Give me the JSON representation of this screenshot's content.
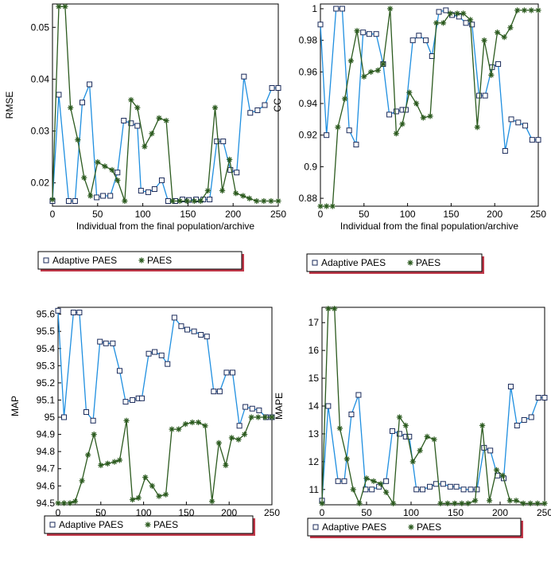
{
  "colors": {
    "adaptive": "#1f8fe0",
    "paes": "#2b5a1e",
    "legend_shadow": "#c0394a"
  },
  "chart_data": [
    {
      "type": "line",
      "ylabel": "RMSE",
      "xlabel": "Individual from the final population/archive",
      "xlim": [
        0,
        250
      ],
      "ylim": [
        0.0155,
        0.0545
      ],
      "xticks": [
        0,
        50,
        100,
        150,
        200,
        250
      ],
      "yticks": [
        0.02,
        0.03,
        0.04,
        0.05
      ],
      "ytick_labels": [
        "0.02",
        "0.03",
        "0.04",
        "0.05"
      ],
      "series": [
        {
          "name": "Adaptive PAES",
          "marker": "square",
          "x": [
            0,
            7,
            18,
            25,
            33,
            41,
            49,
            56,
            64,
            72,
            79,
            87,
            94,
            98,
            106,
            113,
            121,
            128,
            136,
            144,
            151,
            159,
            167,
            174,
            182,
            189,
            197,
            204,
            212,
            219,
            227,
            235,
            243,
            250
          ],
          "y": [
            0.0165,
            0.037,
            0.0165,
            0.0165,
            0.0355,
            0.039,
            0.0172,
            0.0175,
            0.0175,
            0.022,
            0.032,
            0.0315,
            0.031,
            0.0185,
            0.0182,
            0.0188,
            0.0205,
            0.0165,
            0.0165,
            0.0168,
            0.0167,
            0.0168,
            0.0168,
            0.0168,
            0.028,
            0.028,
            0.0225,
            0.022,
            0.0405,
            0.0335,
            0.034,
            0.035,
            0.0383,
            0.0383
          ]
        },
        {
          "name": "PAES",
          "marker": "star",
          "x": [
            0,
            7,
            14,
            20,
            28,
            35,
            42,
            50,
            58,
            66,
            72,
            80,
            87,
            94,
            102,
            110,
            118,
            126,
            133,
            141,
            149,
            157,
            164,
            172,
            180,
            188,
            196,
            203,
            211,
            218,
            226,
            234,
            242,
            250
          ],
          "y": [
            0.0168,
            0.054,
            0.054,
            0.0345,
            0.0283,
            0.021,
            0.0175,
            0.024,
            0.0232,
            0.0225,
            0.0205,
            0.0165,
            0.036,
            0.0345,
            0.027,
            0.0295,
            0.0325,
            0.032,
            0.0165,
            0.0165,
            0.0165,
            0.0165,
            0.0165,
            0.0185,
            0.0345,
            0.0185,
            0.0245,
            0.018,
            0.0175,
            0.017,
            0.0165,
            0.0165,
            0.0165,
            0.0165
          ]
        }
      ]
    },
    {
      "type": "line",
      "ylabel": "CC",
      "xlabel": "Individual from the final population/archive",
      "xlim": [
        0,
        250
      ],
      "ylim": [
        0.875,
        1.003
      ],
      "xticks": [
        0,
        50,
        100,
        150,
        200,
        250
      ],
      "yticks": [
        0.88,
        0.9,
        0.92,
        0.94,
        0.96,
        0.98,
        1.0
      ],
      "ytick_labels": [
        "0.88",
        "0.9",
        "0.92",
        "0.94",
        "0.96",
        "0.98",
        "1"
      ],
      "series": [
        {
          "name": "Adaptive PAES",
          "marker": "square",
          "x": [
            0,
            7,
            18,
            25,
            33,
            41,
            49,
            56,
            64,
            72,
            79,
            87,
            94,
            98,
            106,
            113,
            121,
            128,
            136,
            144,
            151,
            159,
            167,
            174,
            182,
            189,
            197,
            204,
            212,
            219,
            227,
            235,
            243,
            250
          ],
          "y": [
            0.99,
            0.92,
            1.0,
            1.0,
            0.923,
            0.914,
            0.985,
            0.984,
            0.984,
            0.965,
            0.933,
            0.935,
            0.936,
            0.936,
            0.98,
            0.983,
            0.98,
            0.97,
            0.998,
            0.999,
            0.996,
            0.995,
            0.991,
            0.99,
            0.945,
            0.945,
            0.963,
            0.965,
            0.91,
            0.93,
            0.928,
            0.926,
            0.917,
            0.917
          ]
        },
        {
          "name": "PAES",
          "marker": "star",
          "x": [
            0,
            7,
            14,
            20,
            28,
            35,
            42,
            50,
            58,
            66,
            72,
            80,
            87,
            94,
            102,
            110,
            118,
            126,
            133,
            141,
            149,
            157,
            164,
            172,
            180,
            188,
            196,
            203,
            211,
            218,
            226,
            234,
            242,
            250
          ],
          "y": [
            0.875,
            0.875,
            0.875,
            0.925,
            0.943,
            0.967,
            0.986,
            0.957,
            0.96,
            0.961,
            0.965,
            1.0,
            0.921,
            0.927,
            0.947,
            0.94,
            0.931,
            0.932,
            0.991,
            0.991,
            0.997,
            0.997,
            0.997,
            0.993,
            0.925,
            0.98,
            0.958,
            0.985,
            0.982,
            0.988,
            0.999,
            0.999,
            0.999,
            0.999
          ]
        }
      ]
    },
    {
      "type": "line",
      "ylabel": "MAP",
      "xlabel": "Individual from the final population/archive",
      "xlim": [
        0,
        250
      ],
      "ylim": [
        94.49,
        95.64
      ],
      "xticks": [
        0,
        50,
        100,
        150,
        200,
        250
      ],
      "yticks": [
        94.5,
        94.6,
        94.7,
        94.8,
        94.9,
        95.0,
        95.1,
        95.2,
        95.3,
        95.4,
        95.5,
        95.6
      ],
      "ytick_labels": [
        "94.5",
        "94.6",
        "94.7",
        "94.8",
        "94.9",
        "95",
        "95.1",
        "95.2",
        "95.3",
        "95.4",
        "95.5",
        "95.6"
      ],
      "series": [
        {
          "name": "Adaptive PAES",
          "marker": "square",
          "x": [
            0,
            7,
            18,
            25,
            33,
            41,
            49,
            56,
            64,
            72,
            79,
            87,
            94,
            98,
            106,
            113,
            121,
            128,
            136,
            144,
            151,
            159,
            167,
            174,
            182,
            189,
            197,
            204,
            212,
            219,
            227,
            235,
            243,
            250
          ],
          "y": [
            95.62,
            95.0,
            95.61,
            95.61,
            95.03,
            94.98,
            95.44,
            95.43,
            95.43,
            95.27,
            95.09,
            95.1,
            95.11,
            95.11,
            95.37,
            95.38,
            95.36,
            95.31,
            95.58,
            95.53,
            95.51,
            95.5,
            95.48,
            95.47,
            95.15,
            95.15,
            95.26,
            95.26,
            94.95,
            95.06,
            95.05,
            95.04,
            95.0,
            95.0
          ]
        },
        {
          "name": "PAES",
          "marker": "star",
          "x": [
            0,
            7,
            14,
            20,
            28,
            35,
            42,
            50,
            58,
            66,
            72,
            80,
            87,
            94,
            102,
            110,
            118,
            126,
            133,
            141,
            149,
            157,
            164,
            172,
            180,
            188,
            196,
            203,
            211,
            218,
            226,
            234,
            242,
            250
          ],
          "y": [
            94.5,
            94.5,
            94.5,
            94.51,
            94.63,
            94.78,
            94.9,
            94.72,
            94.73,
            94.74,
            94.75,
            94.98,
            94.52,
            94.53,
            94.65,
            94.6,
            94.54,
            94.55,
            94.93,
            94.93,
            94.96,
            94.97,
            94.97,
            94.95,
            94.51,
            94.85,
            94.72,
            94.88,
            94.87,
            94.9,
            95.0,
            95.0,
            95.0,
            95.0
          ]
        }
      ]
    },
    {
      "type": "line",
      "ylabel": "MAPE",
      "xlabel": "Individual from the final population/archive",
      "xlim": [
        0,
        250
      ],
      "ylim": [
        10.45,
        17.55
      ],
      "xticks": [
        0,
        50,
        100,
        150,
        200,
        250
      ],
      "yticks": [
        11,
        12,
        13,
        14,
        15,
        16,
        17
      ],
      "ytick_labels": [
        "11",
        "12",
        "13",
        "14",
        "15",
        "16",
        "17"
      ],
      "series": [
        {
          "name": "Adaptive PAES",
          "marker": "square",
          "x": [
            0,
            7,
            18,
            25,
            33,
            41,
            49,
            56,
            64,
            72,
            79,
            87,
            94,
            98,
            106,
            113,
            121,
            128,
            136,
            144,
            151,
            159,
            167,
            174,
            182,
            189,
            197,
            204,
            212,
            219,
            227,
            235,
            243,
            250
          ],
          "y": [
            10.6,
            14.0,
            11.3,
            11.3,
            13.7,
            14.4,
            11.0,
            11.0,
            11.1,
            11.3,
            13.1,
            13.0,
            12.9,
            12.9,
            11.0,
            11.0,
            11.1,
            11.2,
            11.2,
            11.1,
            11.1,
            11.0,
            11.0,
            11.0,
            12.5,
            12.4,
            11.5,
            11.4,
            14.7,
            13.3,
            13.5,
            13.6,
            14.3,
            14.3
          ]
        },
        {
          "name": "PAES",
          "marker": "star",
          "x": [
            0,
            7,
            14,
            20,
            28,
            35,
            42,
            50,
            58,
            66,
            72,
            80,
            87,
            94,
            102,
            110,
            118,
            126,
            133,
            141,
            149,
            157,
            164,
            172,
            180,
            188,
            196,
            203,
            211,
            218,
            226,
            234,
            242,
            250
          ],
          "y": [
            10.5,
            17.5,
            17.5,
            13.2,
            12.1,
            11.0,
            10.5,
            11.4,
            11.3,
            11.2,
            10.9,
            10.5,
            13.6,
            13.3,
            12.0,
            12.4,
            12.9,
            12.8,
            10.5,
            10.5,
            10.5,
            10.5,
            10.5,
            10.6,
            13.3,
            10.6,
            11.7,
            11.5,
            10.6,
            10.6,
            10.5,
            10.5,
            10.5,
            10.5
          ]
        }
      ]
    }
  ]
}
